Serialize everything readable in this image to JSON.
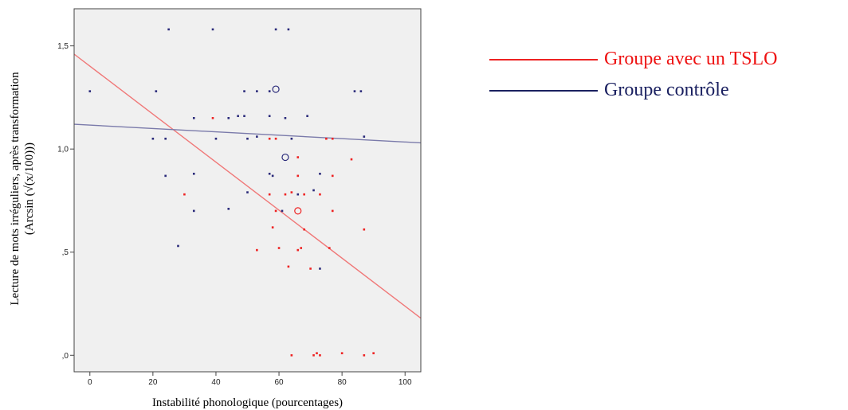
{
  "chart_data": {
    "type": "scatter",
    "xlabel": "Instabilité phonologique (pourcentages)",
    "ylabel_lines": [
      "Lecture de mots irréguliers, après transformation",
      "(Arcsin (√(x/100)))"
    ],
    "x_ticks": [
      0,
      20,
      40,
      60,
      80,
      100
    ],
    "x_tick_labels": [
      "0",
      "20",
      "40",
      "60",
      "80",
      "100"
    ],
    "y_ticks": [
      0,
      0.5,
      1.0,
      1.5
    ],
    "y_tick_labels": [
      ",0",
      ",5",
      "1,0",
      "1,5"
    ],
    "xlim": [
      -5,
      105
    ],
    "ylim": [
      -0.08,
      1.68
    ],
    "grid": false,
    "plot_background": "#f0f0f0",
    "legend_position": "right",
    "series": [
      {
        "name": "Groupe avec un TSLO",
        "color": "#ee2222",
        "line_color": "#f07878",
        "fit_line": {
          "x": [
            -5,
            105
          ],
          "y": [
            1.46,
            0.18
          ]
        },
        "centroid": {
          "x": 66,
          "y": 0.7
        },
        "points": [
          [
            39,
            1.15
          ],
          [
            30,
            0.78
          ],
          [
            57,
            1.05
          ],
          [
            59,
            1.05
          ],
          [
            66,
            0.96
          ],
          [
            77,
            1.05
          ],
          [
            75,
            1.05
          ],
          [
            83,
            0.95
          ],
          [
            77,
            0.87
          ],
          [
            66,
            0.87
          ],
          [
            57,
            0.78
          ],
          [
            62,
            0.78
          ],
          [
            64,
            0.79
          ],
          [
            68,
            0.78
          ],
          [
            73,
            0.78
          ],
          [
            59,
            0.7
          ],
          [
            77,
            0.7
          ],
          [
            58,
            0.62
          ],
          [
            68,
            0.61
          ],
          [
            87,
            0.61
          ],
          [
            53,
            0.51
          ],
          [
            60,
            0.52
          ],
          [
            66,
            0.51
          ],
          [
            67,
            0.52
          ],
          [
            76,
            0.52
          ],
          [
            63,
            0.43
          ],
          [
            70,
            0.42
          ],
          [
            64,
            0.0
          ],
          [
            71,
            0.0
          ],
          [
            72,
            0.01
          ],
          [
            73,
            0.0
          ],
          [
            80,
            0.01
          ],
          [
            87,
            0.0
          ],
          [
            90,
            0.01
          ]
        ]
      },
      {
        "name": "Groupe contrôle",
        "color": "#2a2a7a",
        "line_color": "#7a7aaa",
        "fit_line": {
          "x": [
            -5,
            105
          ],
          "y": [
            1.12,
            1.03
          ]
        },
        "centroid": {
          "x": 62,
          "y": 0.96
        },
        "centroid2": {
          "x": 59,
          "y": 1.29
        },
        "points": [
          [
            25,
            1.58
          ],
          [
            39,
            1.58
          ],
          [
            59,
            1.58
          ],
          [
            63,
            1.58
          ],
          [
            0,
            1.28
          ],
          [
            21,
            1.28
          ],
          [
            49,
            1.28
          ],
          [
            53,
            1.28
          ],
          [
            57,
            1.28
          ],
          [
            84,
            1.28
          ],
          [
            86,
            1.28
          ],
          [
            33,
            1.15
          ],
          [
            44,
            1.15
          ],
          [
            47,
            1.16
          ],
          [
            49,
            1.16
          ],
          [
            57,
            1.16
          ],
          [
            62,
            1.15
          ],
          [
            69,
            1.16
          ],
          [
            20,
            1.05
          ],
          [
            24,
            1.05
          ],
          [
            40,
            1.05
          ],
          [
            50,
            1.05
          ],
          [
            53,
            1.06
          ],
          [
            64,
            1.05
          ],
          [
            87,
            1.06
          ],
          [
            24,
            0.87
          ],
          [
            33,
            0.88
          ],
          [
            57,
            0.88
          ],
          [
            58,
            0.87
          ],
          [
            73,
            0.88
          ],
          [
            50,
            0.79
          ],
          [
            66,
            0.78
          ],
          [
            71,
            0.8
          ],
          [
            33,
            0.7
          ],
          [
            44,
            0.71
          ],
          [
            61,
            0.7
          ],
          [
            28,
            0.53
          ],
          [
            73,
            0.42
          ]
        ]
      }
    ]
  }
}
